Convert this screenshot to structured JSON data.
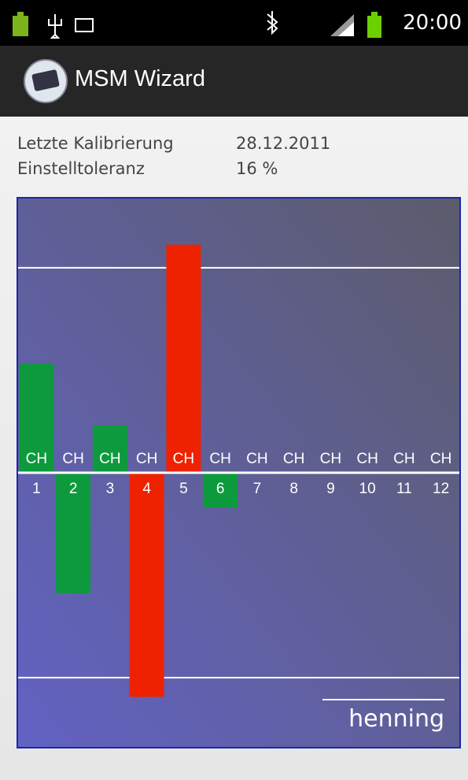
{
  "status_bar": {
    "time": "20:00"
  },
  "app_bar": {
    "title": "MSM Wizard"
  },
  "info": [
    {
      "label": "Letzte Kalibrierung",
      "value": "28.12.2011"
    },
    {
      "label": "Einstelltoleranz",
      "value": "16 %"
    }
  ],
  "chart_data": {
    "type": "bar",
    "channel_prefix": "CH",
    "categories": [
      "1",
      "2",
      "3",
      "4",
      "5",
      "6",
      "7",
      "8",
      "9",
      "10",
      "11",
      "12"
    ],
    "values": [
      8.5,
      -9.4,
      3.7,
      -17.5,
      17.8,
      -2.7,
      0,
      0,
      0,
      0,
      0,
      0
    ],
    "colors": [
      "#0d9a3c",
      "#0d9a3c",
      "#0d9a3c",
      "#ee2200",
      "#ee2200",
      "#0d9a3c",
      "#0d9a3c",
      "#0d9a3c",
      "#0d9a3c",
      "#0d9a3c",
      "#0d9a3c",
      "#0d9a3c"
    ],
    "tolerance_lines": [
      16,
      -16
    ],
    "ylim": [
      -21.4,
      21.4
    ]
  },
  "logo": "henning"
}
